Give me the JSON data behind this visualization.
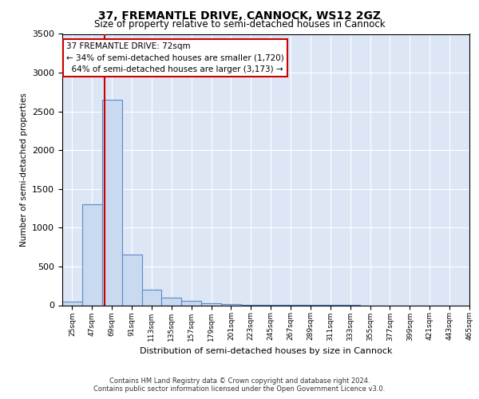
{
  "title": "37, FREMANTLE DRIVE, CANNOCK, WS12 2GZ",
  "subtitle": "Size of property relative to semi-detached houses in Cannock",
  "xlabel": "Distribution of semi-detached houses by size in Cannock",
  "ylabel": "Number of semi-detached properties",
  "bin_labels": [
    "25sqm",
    "47sqm",
    "69sqm",
    "91sqm",
    "113sqm",
    "135sqm",
    "157sqm",
    "179sqm",
    "201sqm",
    "223sqm",
    "245sqm",
    "267sqm",
    "289sqm",
    "311sqm",
    "333sqm",
    "355sqm",
    "377sqm",
    "399sqm",
    "421sqm",
    "443sqm",
    "465sqm"
  ],
  "bin_edges": [
    25,
    47,
    69,
    91,
    113,
    135,
    157,
    179,
    201,
    223,
    245,
    267,
    289,
    311,
    333,
    355,
    377,
    399,
    421,
    443,
    465
  ],
  "bar_heights": [
    50,
    1300,
    2650,
    650,
    200,
    100,
    60,
    30,
    15,
    8,
    5,
    3,
    2,
    1,
    1,
    0,
    0,
    0,
    0,
    0
  ],
  "bar_color": "#c9d9f0",
  "bar_edge_color": "#5a8ac6",
  "property_size": 72,
  "property_line_color": "#cc0000",
  "annotation_line1": "37 FREMANTLE DRIVE: 72sqm",
  "annotation_line2": "← 34% of semi-detached houses are smaller (1,720)",
  "annotation_line3": "  64% of semi-detached houses are larger (3,173) →",
  "annotation_box_color": "#ffffff",
  "annotation_box_edge_color": "#cc0000",
  "ylim": [
    0,
    3500
  ],
  "yticks": [
    0,
    500,
    1000,
    1500,
    2000,
    2500,
    3000,
    3500
  ],
  "figure_background_color": "#ffffff",
  "plot_background_color": "#dce6f5",
  "grid_color": "#ffffff",
  "footer": "Contains HM Land Registry data © Crown copyright and database right 2024.\nContains public sector information licensed under the Open Government Licence v3.0."
}
